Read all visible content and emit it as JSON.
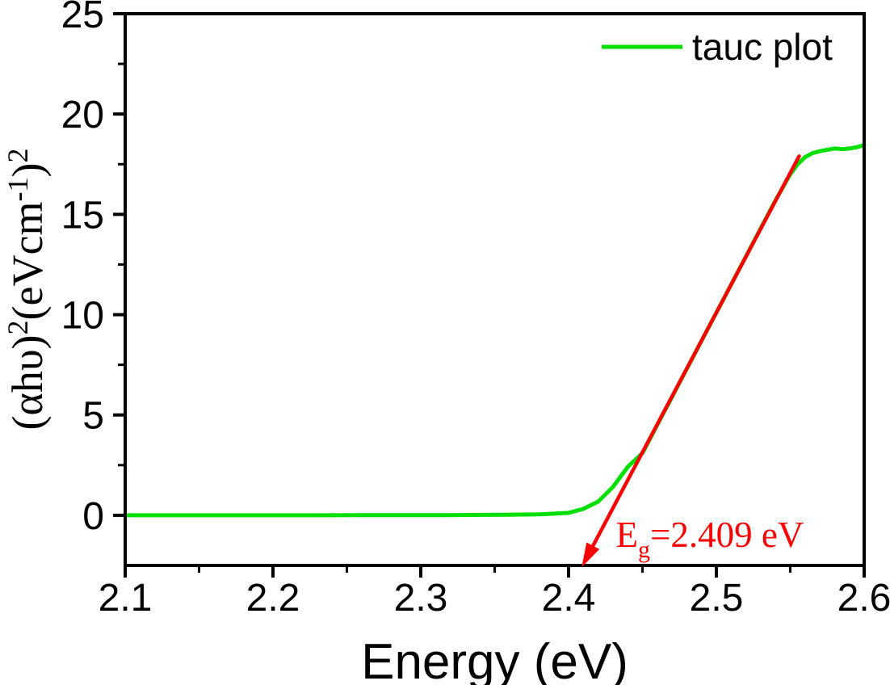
{
  "figure": {
    "background_color": "#ffffff",
    "axis_color": "#000000"
  },
  "chart_data": {
    "type": "line",
    "title": "",
    "xlabel": "Energy (eV)",
    "ylabel_plain": "(αhυ)²(eVcm⁻¹)²",
    "ylabel_segments": [
      {
        "t": "(αhυ)",
        "sup": false
      },
      {
        "t": "2",
        "sup": true
      },
      {
        "t": "(eVcm",
        "sup": false
      },
      {
        "t": "-1",
        "sup": true
      },
      {
        "t": ")",
        "sup": false
      },
      {
        "t": "2",
        "sup": true
      }
    ],
    "xlim": [
      2.1,
      2.6
    ],
    "ylim": [
      -2.5,
      25
    ],
    "grid": false,
    "x_major_ticks": [
      2.1,
      2.2,
      2.3,
      2.4,
      2.5,
      2.6
    ],
    "x_tick_labels": [
      "2.1",
      "2.2",
      "2.3",
      "2.4",
      "2.5",
      "2.6"
    ],
    "x_minor_ticks": [
      2.15,
      2.25,
      2.35,
      2.45,
      2.55
    ],
    "y_major_ticks": [
      0,
      5,
      10,
      15,
      20,
      25
    ],
    "y_tick_labels": [
      "0",
      "5",
      "10",
      "15",
      "20",
      "25"
    ],
    "y_minor_ticks": [
      2.5,
      7.5,
      12.5,
      17.5,
      22.5
    ],
    "legend": {
      "position": "top-right",
      "entries": [
        {
          "label": "tauc plot",
          "color": "#00df00"
        }
      ]
    },
    "series": [
      {
        "name": "tauc plot",
        "color": "#00df00",
        "x": [
          2.1,
          2.12,
          2.14,
          2.16,
          2.18,
          2.2,
          2.22,
          2.24,
          2.26,
          2.28,
          2.3,
          2.32,
          2.34,
          2.36,
          2.38,
          2.39,
          2.4,
          2.41,
          2.42,
          2.43,
          2.44,
          2.45,
          2.46,
          2.47,
          2.48,
          2.49,
          2.5,
          2.51,
          2.52,
          2.53,
          2.54,
          2.55,
          2.555,
          2.56,
          2.565,
          2.57,
          2.575,
          2.58,
          2.585,
          2.59,
          2.595,
          2.6
        ],
        "y": [
          0,
          0,
          0,
          0,
          0,
          0,
          0,
          0,
          0.005,
          0.005,
          0.01,
          0.01,
          0.02,
          0.03,
          0.05,
          0.08,
          0.12,
          0.32,
          0.68,
          1.41,
          2.41,
          3.1,
          4.5,
          5.9,
          7.3,
          8.7,
          10.1,
          11.5,
          12.9,
          14.3,
          15.7,
          17.0,
          17.5,
          17.85,
          18.05,
          18.15,
          18.22,
          18.28,
          18.25,
          18.28,
          18.35,
          18.45
        ]
      }
    ],
    "annotations": {
      "tangent_line": {
        "color": "#fa0000",
        "x1": 2.556,
        "y1": 17.9,
        "x2": 2.4095,
        "y2": -2.5,
        "arrow_at_end": true
      },
      "band_gap_label": {
        "plain": "Eg=2.409 eV",
        "segments": [
          {
            "t": "E",
            "sub": false
          },
          {
            "t": "g",
            "sub": true
          },
          {
            "t": "=2.409 eV",
            "sub": false
          }
        ],
        "color": "#fa0000",
        "x": 2.432,
        "y": -1.57
      },
      "band_gap_value_eV": 2.409
    }
  }
}
